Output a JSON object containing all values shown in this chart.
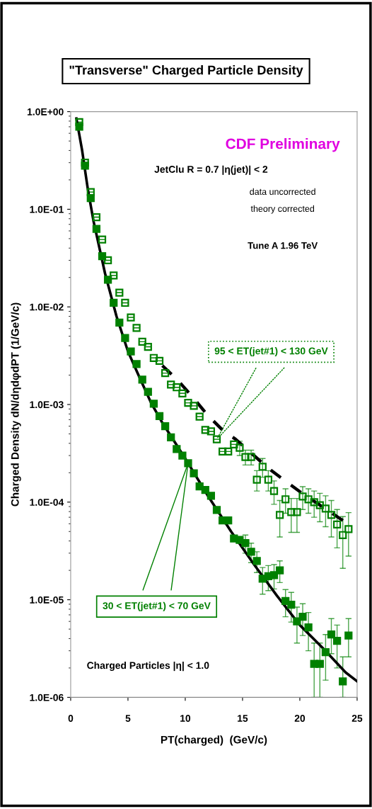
{
  "chart_data": {
    "type": "scatter",
    "title": "\"Transverse\" Charged Particle Density",
    "xlabel": "PT(charged)  (GeV/c)",
    "ylabel": "Charged Density dN/dηdφdPT (1/GeV/c)",
    "log": "y",
    "xlim": [
      0,
      25
    ],
    "ylim": [
      1e-06,
      1
    ],
    "xticks": [
      0,
      5,
      10,
      15,
      20,
      25
    ],
    "yticks": [
      {
        "value": 1e-06,
        "label": "1.0E-06"
      },
      {
        "value": 1e-05,
        "label": "1.0E-05"
      },
      {
        "value": 0.0001,
        "label": "1.0E-04"
      },
      {
        "value": 0.001,
        "label": "1.0E-03"
      },
      {
        "value": 0.01,
        "label": "1.0E-02"
      },
      {
        "value": 0.1,
        "label": "1.0E-01"
      },
      {
        "value": 1,
        "label": "1.0E+00"
      }
    ],
    "grid": false,
    "legend": false,
    "annotations": [
      "CDF Preliminary",
      "JetClu R = 0.7 |η(jet)| < 2",
      "data uncorrected",
      "theory corrected",
      "Tune A 1.96 TeV",
      "Charged Particles |η| < 1.0"
    ],
    "series": [
      {
        "type": "line",
        "color": "#000000",
        "line_style": "solid",
        "x": [
          0.5,
          1,
          1.5,
          2,
          3,
          4,
          5,
          6,
          7,
          8,
          10,
          12,
          14,
          16,
          18,
          20,
          22,
          24,
          25
        ],
        "values": [
          0.85,
          0.4,
          0.16,
          0.075,
          0.022,
          0.008,
          0.0035,
          0.0019,
          0.00105,
          0.00065,
          0.00028,
          0.000115,
          5e-05,
          2.3e-05,
          1.1e-05,
          5.5e-06,
          3.2e-06,
          1.8e-06,
          1.46e-06
        ]
      },
      {
        "type": "line",
        "color": "#000000",
        "line_style": "dashed",
        "x": [
          8,
          9.3,
          10.7,
          11.9,
          13.3,
          14.4,
          17.3,
          18.6,
          20,
          24
        ],
        "values": [
          0.0025,
          0.0018,
          0.00117,
          0.00079,
          0.00054,
          0.00044,
          0.00022,
          0.000169,
          0.000128,
          6.2e-05
        ]
      },
      {
        "name": "95 < ET(jet#1) < 130 GeV",
        "color": "#008000",
        "marker": "square",
        "line_style": "dotted",
        "x": [
          0.75,
          1.25,
          1.75,
          2.25,
          2.75,
          3.25,
          3.75,
          4.25,
          4.75,
          5.25,
          5.75,
          6.25,
          6.75,
          7.25,
          7.75,
          8.25,
          8.75,
          9.25,
          9.75,
          10.25,
          10.75,
          11.25,
          11.75,
          12.25,
          12.75,
          13.25,
          13.75,
          14.25,
          14.75,
          15.25,
          15.75,
          16.25,
          16.75,
          17.25,
          17.75,
          18.25,
          18.75,
          19.25,
          19.75,
          20.25,
          20.75,
          21.25,
          21.75,
          22.25,
          22.75,
          23.25,
          23.75,
          24.25
        ],
        "values": [
          0.78,
          0.3,
          0.15,
          0.083,
          0.049,
          0.03,
          0.021,
          0.014,
          0.011,
          0.0078,
          0.0061,
          0.0044,
          0.0039,
          0.003,
          0.0028,
          0.0021,
          0.0016,
          0.0015,
          0.0013,
          0.00104,
          0.00097,
          0.00075,
          0.00055,
          0.00053,
          0.00044,
          0.00033,
          0.00033,
          0.00039,
          0.00036,
          0.00029,
          0.00029,
          0.00017,
          0.00023,
          0.00017,
          0.00013,
          7.4e-05,
          0.000107,
          7.9e-05,
          7.9e-05,
          0.000114,
          0.000107,
          0.0001,
          9.3e-05,
          8.6e-05,
          7.4e-05,
          5.9e-05,
          4.6e-05,
          5.3e-05
        ],
        "errors": [
          null,
          null,
          null,
          null,
          null,
          null,
          null,
          null,
          null,
          null,
          null,
          null,
          null,
          null,
          null,
          null,
          null,
          null,
          null,
          null,
          null,
          null,
          null,
          null,
          null,
          null,
          null,
          null,
          6e-05,
          5e-05,
          5e-05,
          4e-05,
          5e-05,
          4e-05,
          3.5e-05,
          3e-05,
          3e-05,
          3e-05,
          3e-05,
          3e-05,
          3e-05,
          3e-05,
          3e-05,
          3e-05,
          3e-05,
          2.5e-05,
          2.5e-05,
          2.5e-05
        ]
      },
      {
        "name": "30 < ET(jet#1) < 70 GeV",
        "color": "#008000",
        "marker": "square",
        "line_style": "solid",
        "x": [
          0.75,
          1.25,
          1.75,
          2.25,
          2.75,
          3.25,
          3.75,
          4.25,
          4.75,
          5.25,
          5.75,
          6.25,
          6.75,
          7.25,
          7.75,
          8.25,
          8.75,
          9.25,
          9.75,
          10.25,
          10.75,
          11.25,
          11.75,
          12.25,
          12.75,
          13.25,
          13.75,
          14.25,
          14.75,
          15.25,
          15.75,
          16.25,
          16.75,
          17.25,
          17.75,
          18.25,
          18.75,
          19.25,
          19.75,
          20.25,
          20.75,
          21.25,
          21.75,
          22.25,
          22.75,
          23.25,
          23.75,
          24.25
        ],
        "values": [
          0.7,
          0.28,
          0.13,
          0.063,
          0.033,
          0.019,
          0.011,
          0.0069,
          0.0048,
          0.0035,
          0.0026,
          0.0018,
          0.00135,
          0.00102,
          0.00076,
          0.0006,
          0.00046,
          0.00035,
          0.0003,
          0.00025,
          0.000197,
          0.000145,
          0.000133,
          0.000116,
          8.3e-05,
          6.5e-05,
          6.5e-05,
          4.25e-05,
          4.1e-05,
          3.8e-05,
          3.1e-05,
          2.5e-05,
          1.64e-05,
          1.74e-05,
          1.79e-05,
          2e-05,
          9.7e-06,
          8.9e-06,
          6e-06,
          6.7e-06,
          5.2e-06,
          2.2e-06,
          2.2e-06,
          2.9e-06,
          4.4e-06,
          3.8e-06,
          1.46e-06,
          4.3e-06
        ],
        "errors": [
          null,
          null,
          null,
          null,
          null,
          null,
          null,
          null,
          null,
          null,
          null,
          null,
          null,
          null,
          null,
          null,
          null,
          null,
          null,
          null,
          null,
          null,
          null,
          null,
          null,
          null,
          null,
          null,
          null,
          8e-06,
          7e-06,
          6e-06,
          5e-06,
          5e-06,
          5e-06,
          5e-06,
          3e-06,
          3e-06,
          2.4e-06,
          2.4e-06,
          2.2e-06,
          [
            1e-06,
            3.6e-06
          ],
          [
            1e-06,
            3.6e-06
          ],
          [
            1.5e-06,
            4.4e-06
          ],
          [
            2.8e-06,
            6.4e-06
          ],
          [
            2e-06,
            5.5e-06
          ],
          [
            1e-06,
            2.6e-06
          ],
          [
            2.6e-06,
            6.4e-06
          ]
        ]
      }
    ]
  }
}
